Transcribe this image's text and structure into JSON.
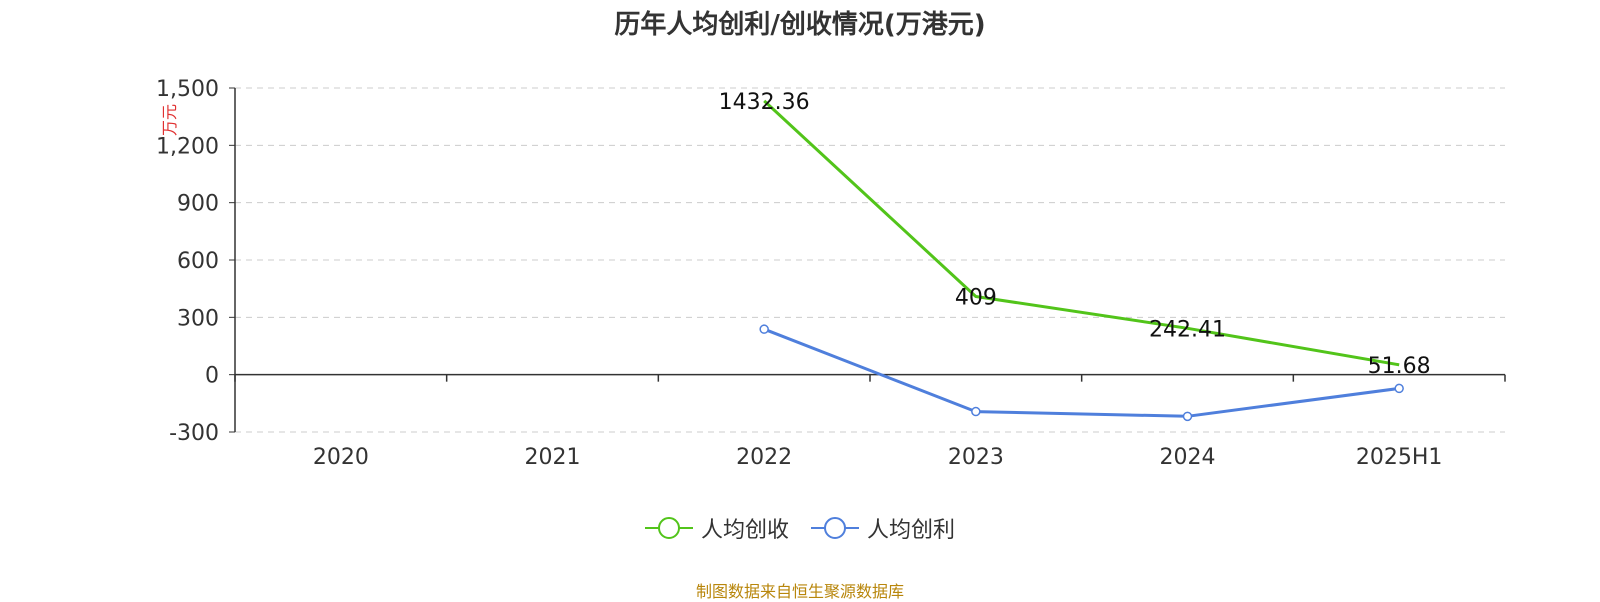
{
  "chart_data": {
    "type": "line",
    "title": "历年人均创利/创收情况(万港元)",
    "ylabel": "万元",
    "categories": [
      "2020",
      "2021",
      "2022",
      "2023",
      "2024",
      "2025H1"
    ],
    "ylim": [
      -300,
      1500
    ],
    "yticks": [
      -300,
      0,
      300,
      600,
      900,
      1200,
      1500
    ],
    "ytick_labels": [
      "-300",
      "0",
      "300",
      "600",
      "900",
      "1,200",
      "1,500"
    ],
    "grid": true,
    "legend_position": "bottom-center",
    "series": [
      {
        "name": "人均创收",
        "color": "#52c41a",
        "values": [
          null,
          null,
          1432.36,
          409,
          242.41,
          51.68
        ],
        "labels": [
          "",
          "",
          "1432.36",
          "409",
          "242.41",
          "51.68"
        ],
        "show_markers": false
      },
      {
        "name": "人均创利",
        "color": "#4f7fdc",
        "values": [
          null,
          null,
          238,
          -193,
          -218,
          -72
        ],
        "labels": [
          "",
          "",
          "",
          "",
          "",
          ""
        ],
        "show_markers": true
      }
    ]
  },
  "source": "制图数据来自恒生聚源数据库"
}
